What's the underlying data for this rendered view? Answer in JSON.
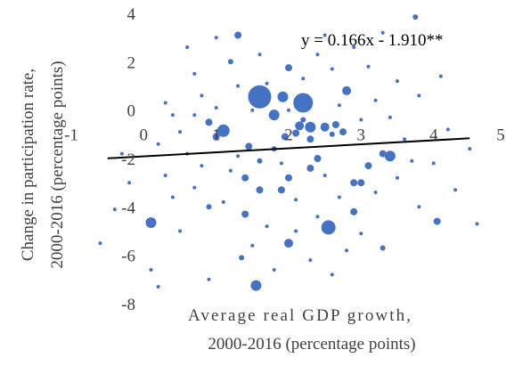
{
  "chart_data": {
    "type": "scatter",
    "xlabel_line1": "Average real GDP growth,",
    "xlabel_line2": "2000-2016  (percentage points)",
    "ylabel_line1": "Change in participation rate,",
    "ylabel_line2": "2000-2016  (percentage points)",
    "xlim": [
      -1,
      5
    ],
    "ylim": [
      -8,
      4
    ],
    "x_ticks": [
      -1,
      0,
      1,
      2,
      3,
      4,
      5
    ],
    "y_ticks": [
      4,
      2,
      0,
      -2,
      -4,
      -6,
      -8
    ],
    "x_tick_labels": [
      "-1",
      "0",
      "1",
      "2",
      "3",
      "4",
      "5"
    ],
    "y_tick_labels": [
      "4",
      "2",
      "0",
      "-2",
      "-4",
      "-6",
      "-8"
    ],
    "trendline": {
      "slope": 0.166,
      "intercept": -1.91,
      "x_range": [
        -0.5,
        4.5
      ],
      "color": "#000000"
    },
    "equation_label": "y = 0.166x - 1.910**",
    "marker_color": "#4472C4",
    "points": [
      {
        "x": 1.6,
        "y": 0.55,
        "s": 13
      },
      {
        "x": 2.2,
        "y": 0.3,
        "s": 11
      },
      {
        "x": 1.92,
        "y": 0.55,
        "s": 6
      },
      {
        "x": 1.1,
        "y": -0.85,
        "s": 7
      },
      {
        "x": 1.8,
        "y": -0.2,
        "s": 6
      },
      {
        "x": 2.55,
        "y": -4.85,
        "s": 8
      },
      {
        "x": 0.1,
        "y": -4.65,
        "s": 6
      },
      {
        "x": 1.55,
        "y": -7.25,
        "s": 6
      },
      {
        "x": 2.0,
        "y": -5.5,
        "s": 5
      },
      {
        "x": 3.4,
        "y": -1.9,
        "s": 6
      },
      {
        "x": 1.3,
        "y": 3.1,
        "s": 4
      },
      {
        "x": 2.8,
        "y": 0.8,
        "s": 5
      },
      {
        "x": 2.0,
        "y": 1.75,
        "s": 4
      },
      {
        "x": 2.3,
        "y": -0.7,
        "s": 6
      },
      {
        "x": 2.5,
        "y": -0.7,
        "s": 5
      },
      {
        "x": 2.15,
        "y": -0.65,
        "s": 5
      },
      {
        "x": 1.95,
        "y": -1.1,
        "s": 4
      },
      {
        "x": 2.1,
        "y": -0.95,
        "s": 4
      },
      {
        "x": 2.3,
        "y": -1.2,
        "s": 4
      },
      {
        "x": 2.65,
        "y": -0.6,
        "s": 4
      },
      {
        "x": 2.75,
        "y": -0.9,
        "s": 4
      },
      {
        "x": 1.45,
        "y": -1.5,
        "s": 4
      },
      {
        "x": 1.0,
        "y": -1.1,
        "s": 4
      },
      {
        "x": 0.9,
        "y": -0.5,
        "s": 4
      },
      {
        "x": 1.4,
        "y": -2.8,
        "s": 4
      },
      {
        "x": 2.4,
        "y": -2.0,
        "s": 4
      },
      {
        "x": 2.3,
        "y": -2.4,
        "s": 4
      },
      {
        "x": 2.0,
        "y": -2.8,
        "s": 4
      },
      {
        "x": 1.6,
        "y": -3.3,
        "s": 4
      },
      {
        "x": 1.9,
        "y": -3.3,
        "s": 4
      },
      {
        "x": 2.9,
        "y": -3.0,
        "s": 4
      },
      {
        "x": 3.1,
        "y": -2.3,
        "s": 4
      },
      {
        "x": 3.0,
        "y": -3.0,
        "s": 4
      },
      {
        "x": 3.3,
        "y": -1.8,
        "s": 4
      },
      {
        "x": 2.9,
        "y": -4.2,
        "s": 4
      },
      {
        "x": 1.4,
        "y": -4.3,
        "s": 4
      },
      {
        "x": 0.9,
        "y": -4.0,
        "s": 3
      },
      {
        "x": 4.05,
        "y": -4.6,
        "s": 4
      },
      {
        "x": 3.3,
        "y": -5.7,
        "s": 3
      },
      {
        "x": 1.35,
        "y": -6.1,
        "s": 3
      },
      {
        "x": 1.6,
        "y": -2.1,
        "s": 3
      },
      {
        "x": 1.8,
        "y": -1.6,
        "s": 3
      },
      {
        "x": 2.6,
        "y": -1.0,
        "s": 3
      },
      {
        "x": 2.2,
        "y": -0.4,
        "s": 3
      },
      {
        "x": 3.75,
        "y": 3.85,
        "s": 3
      },
      {
        "x": 1.2,
        "y": 2.0,
        "s": 3
      },
      {
        "x": 0.6,
        "y": 2.6,
        "s": 2
      },
      {
        "x": 0.7,
        "y": 1.5,
        "s": 2
      },
      {
        "x": 1.3,
        "y": 1.0,
        "s": 2
      },
      {
        "x": 2.2,
        "y": 1.3,
        "s": 2
      },
      {
        "x": 2.6,
        "y": 1.7,
        "s": 2
      },
      {
        "x": 0.4,
        "y": -0.2,
        "s": 2
      },
      {
        "x": 0.5,
        "y": -0.9,
        "s": 2
      },
      {
        "x": 0.2,
        "y": -1.4,
        "s": 2
      },
      {
        "x": 0.6,
        "y": -1.8,
        "s": 2
      },
      {
        "x": 0.8,
        "y": -2.3,
        "s": 2
      },
      {
        "x": 0.3,
        "y": -2.7,
        "s": 2
      },
      {
        "x": 0.7,
        "y": -3.2,
        "s": 2
      },
      {
        "x": 1.1,
        "y": -3.8,
        "s": 2
      },
      {
        "x": 1.7,
        "y": -4.8,
        "s": 2
      },
      {
        "x": 2.1,
        "y": -5.0,
        "s": 2
      },
      {
        "x": 2.4,
        "y": -4.4,
        "s": 2
      },
      {
        "x": 2.7,
        "y": -3.6,
        "s": 2
      },
      {
        "x": 3.2,
        "y": -3.4,
        "s": 2
      },
      {
        "x": 3.5,
        "y": -2.8,
        "s": 2
      },
      {
        "x": 3.6,
        "y": -1.2,
        "s": 2
      },
      {
        "x": 3.0,
        "y": -0.4,
        "s": 2
      },
      {
        "x": 3.2,
        "y": 0.4,
        "s": 2
      },
      {
        "x": 3.5,
        "y": 1.2,
        "s": 2
      },
      {
        "x": 3.8,
        "y": 0.6,
        "s": 2
      },
      {
        "x": 4.2,
        "y": -0.8,
        "s": 2
      },
      {
        "x": 4.0,
        "y": -2.2,
        "s": 2
      },
      {
        "x": 4.3,
        "y": -3.3,
        "s": 2
      },
      {
        "x": 4.6,
        "y": -4.7,
        "s": 2
      },
      {
        "x": -0.4,
        "y": -4.1,
        "s": 2
      },
      {
        "x": -0.6,
        "y": -5.5,
        "s": 2
      },
      {
        "x": 0.1,
        "y": -6.6,
        "s": 2
      },
      {
        "x": 0.2,
        "y": -7.3,
        "s": 2
      },
      {
        "x": 0.9,
        "y": -7.0,
        "s": 2
      },
      {
        "x": 2.3,
        "y": -6.2,
        "s": 2
      },
      {
        "x": 2.6,
        "y": -6.8,
        "s": 2
      },
      {
        "x": 3.0,
        "y": -5.1,
        "s": 2
      },
      {
        "x": 1.5,
        "y": -5.6,
        "s": 2
      },
      {
        "x": 0.5,
        "y": -5.0,
        "s": 2
      },
      {
        "x": 1.0,
        "y": 0.1,
        "s": 2
      },
      {
        "x": 1.7,
        "y": 1.1,
        "s": 2
      },
      {
        "x": 2.4,
        "y": 2.3,
        "s": 2
      },
      {
        "x": 2.9,
        "y": 2.6,
        "s": 2
      },
      {
        "x": 3.3,
        "y": 3.2,
        "s": 2
      },
      {
        "x": 1.0,
        "y": 3.0,
        "s": 2
      },
      {
        "x": 0.8,
        "y": 0.6,
        "s": 2
      },
      {
        "x": 1.5,
        "y": 0.0,
        "s": 2
      },
      {
        "x": 2.0,
        "y": 0.0,
        "s": 2
      },
      {
        "x": 2.7,
        "y": 0.2,
        "s": 2
      },
      {
        "x": 3.4,
        "y": -0.3,
        "s": 2
      },
      {
        "x": 3.7,
        "y": -2.1,
        "s": 2
      },
      {
        "x": 2.1,
        "y": -3.7,
        "s": 2
      },
      {
        "x": 1.2,
        "y": -2.5,
        "s": 2
      },
      {
        "x": 0.4,
        "y": -3.6,
        "s": 2
      },
      {
        "x": -0.3,
        "y": -1.8,
        "s": 2
      },
      {
        "x": -0.2,
        "y": -3.0,
        "s": 2
      },
      {
        "x": 1.8,
        "y": -6.6,
        "s": 2
      },
      {
        "x": 2.8,
        "y": -5.8,
        "s": 2
      },
      {
        "x": 3.8,
        "y": -4.0,
        "s": 2
      },
      {
        "x": 4.5,
        "y": -1.6,
        "s": 2
      },
      {
        "x": 1.3,
        "y": -1.9,
        "s": 2
      },
      {
        "x": 2.5,
        "y": -2.7,
        "s": 2
      },
      {
        "x": 1.9,
        "y": -2.2,
        "s": 2
      },
      {
        "x": 0.7,
        "y": -0.2,
        "s": 2
      },
      {
        "x": 0.3,
        "y": 0.3,
        "s": 2
      },
      {
        "x": 1.6,
        "y": 2.3,
        "s": 2
      },
      {
        "x": 2.5,
        "y": 3.1,
        "s": 2
      },
      {
        "x": 3.1,
        "y": 1.8,
        "s": 2
      },
      {
        "x": 4.1,
        "y": 1.4,
        "s": 2
      }
    ]
  }
}
